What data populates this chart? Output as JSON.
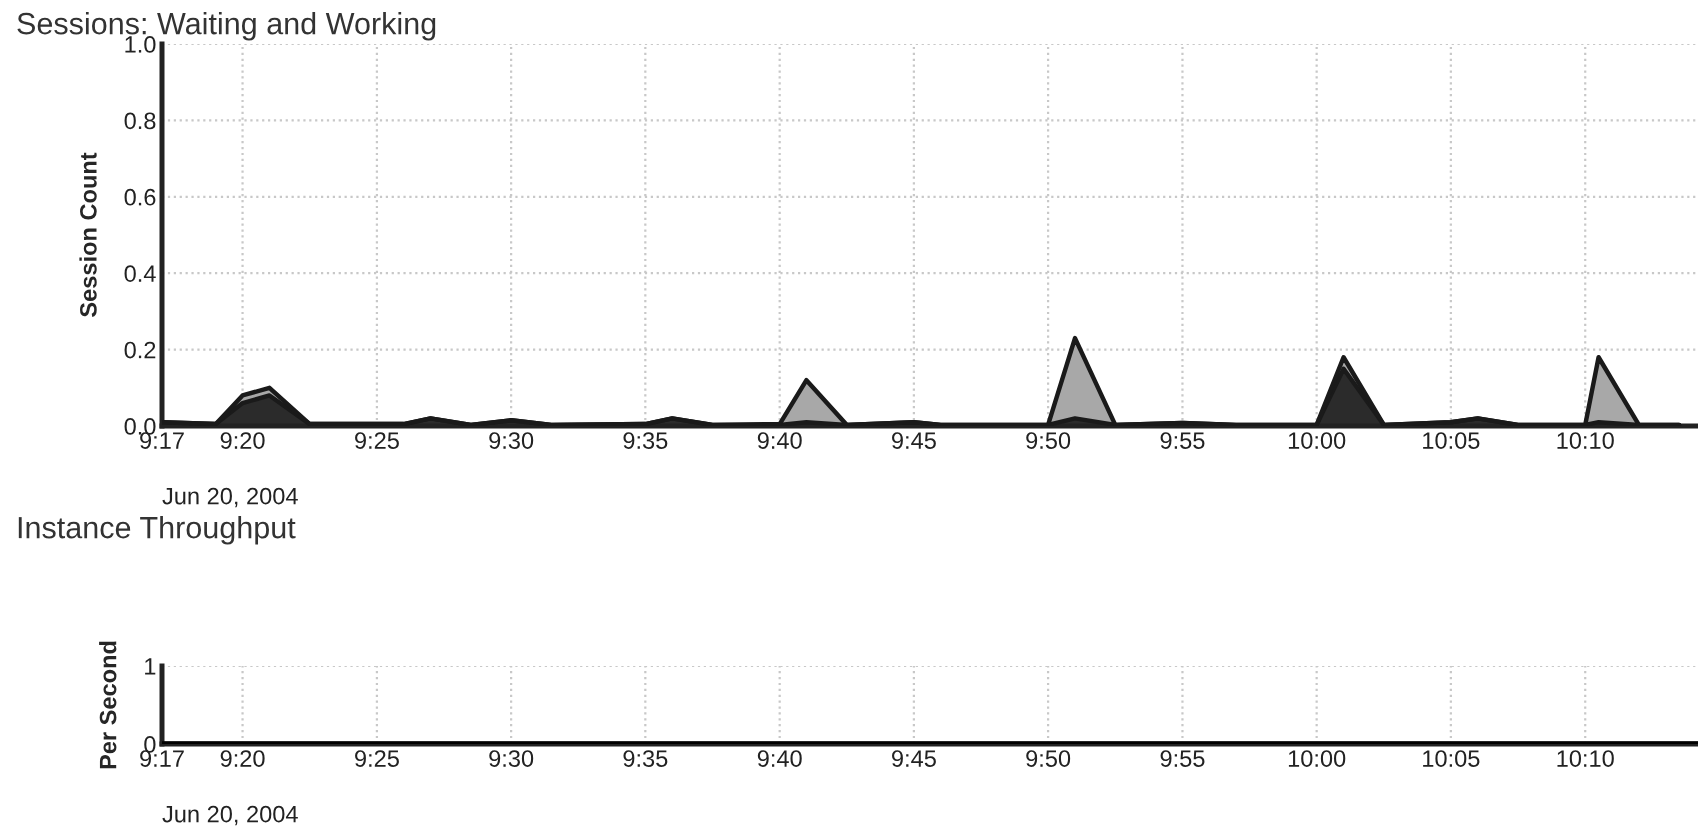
{
  "chart_data": [
    {
      "type": "area",
      "title": "Sessions: Waiting and Working",
      "ylabel": "Session Count",
      "stacked": true,
      "x": [
        9.2833,
        9.3167,
        9.3333,
        9.35,
        9.375,
        9.4333,
        9.45,
        9.475,
        9.5,
        9.525,
        9.5833,
        9.6,
        9.625,
        9.6667,
        9.6833,
        9.7083,
        9.75,
        9.7667,
        9.8333,
        9.85,
        9.875,
        9.9167,
        9.95,
        10.0,
        10.0167,
        10.0417,
        10.0833,
        10.1,
        10.125,
        10.1667,
        10.175,
        10.2,
        10.225
      ],
      "series": [
        {
          "color": "#2b2b2b",
          "values": [
            0.01,
            0.005,
            0.06,
            0.08,
            0.005,
            0.005,
            0.02,
            0.003,
            0.015,
            0.003,
            0.005,
            0.02,
            0.003,
            0.003,
            0.01,
            0.003,
            0.01,
            0.003,
            0.003,
            0.02,
            0.003,
            0.008,
            0.003,
            0.003,
            0.15,
            0.003,
            0.01,
            0.02,
            0.003,
            0.003,
            0.01,
            0.003,
            0.003
          ]
        },
        {
          "color": "#a8a8a8",
          "values": [
            0,
            0,
            0.02,
            0.02,
            0,
            0,
            0,
            0,
            0,
            0,
            0,
            0,
            0,
            0.002,
            0.11,
            0,
            0,
            0,
            0,
            0.21,
            0,
            0,
            0,
            0,
            0.03,
            0,
            0,
            0,
            0,
            0,
            0.17,
            0,
            0
          ]
        }
      ],
      "xlim": [
        9.2833,
        10.2367
      ],
      "ylim": [
        0,
        1.0
      ],
      "yticks": [
        {
          "value": 0,
          "label": "0.0"
        },
        0.2,
        0.4,
        0.6,
        0.8,
        {
          "value": 1,
          "label": "1.0"
        }
      ],
      "xticks": [
        {
          "value": 9.2833,
          "label": "9:17"
        },
        {
          "value": 9.3333,
          "label": "9:20"
        },
        {
          "value": 9.4167,
          "label": "9:25"
        },
        {
          "value": 9.5,
          "label": "9:30"
        },
        {
          "value": 9.5833,
          "label": "9:35"
        },
        {
          "value": 9.6667,
          "label": "9:40"
        },
        {
          "value": 9.75,
          "label": "9:45"
        },
        {
          "value": 9.8333,
          "label": "9:50"
        },
        {
          "value": 9.9167,
          "label": "9:55"
        },
        {
          "value": 10.0,
          "label": "10:00"
        },
        {
          "value": 10.0833,
          "label": "10:05"
        },
        {
          "value": 10.1667,
          "label": "10:10"
        }
      ],
      "annotations": [
        "Jun 20, 2004"
      ],
      "grid": true,
      "legend": false
    },
    {
      "type": "line",
      "title": "Instance Throughput",
      "ylabel": "Per Second",
      "x": [
        9.2833,
        10.2367
      ],
      "series": [
        {
          "color": "#000000",
          "values": [
            0,
            0
          ]
        }
      ],
      "xlim": [
        9.2833,
        10.2367
      ],
      "ylim": [
        0,
        1
      ],
      "yticks": [
        0,
        1
      ],
      "xticks": [
        {
          "value": 9.2833,
          "label": "9:17"
        },
        {
          "value": 9.3333,
          "label": "9:20"
        },
        {
          "value": 9.4167,
          "label": "9:25"
        },
        {
          "value": 9.5,
          "label": "9:30"
        },
        {
          "value": 9.5833,
          "label": "9:35"
        },
        {
          "value": 9.6667,
          "label": "9:40"
        },
        {
          "value": 9.75,
          "label": "9:45"
        },
        {
          "value": 9.8333,
          "label": "9:50"
        },
        {
          "value": 9.9167,
          "label": "9:55"
        },
        {
          "value": 10.0,
          "label": "10:00"
        },
        {
          "value": 10.0833,
          "label": "10:05"
        },
        {
          "value": 10.1667,
          "label": "10:10"
        }
      ],
      "annotations": [
        "Jun 20, 2004"
      ],
      "grid": true,
      "legend": false
    }
  ]
}
